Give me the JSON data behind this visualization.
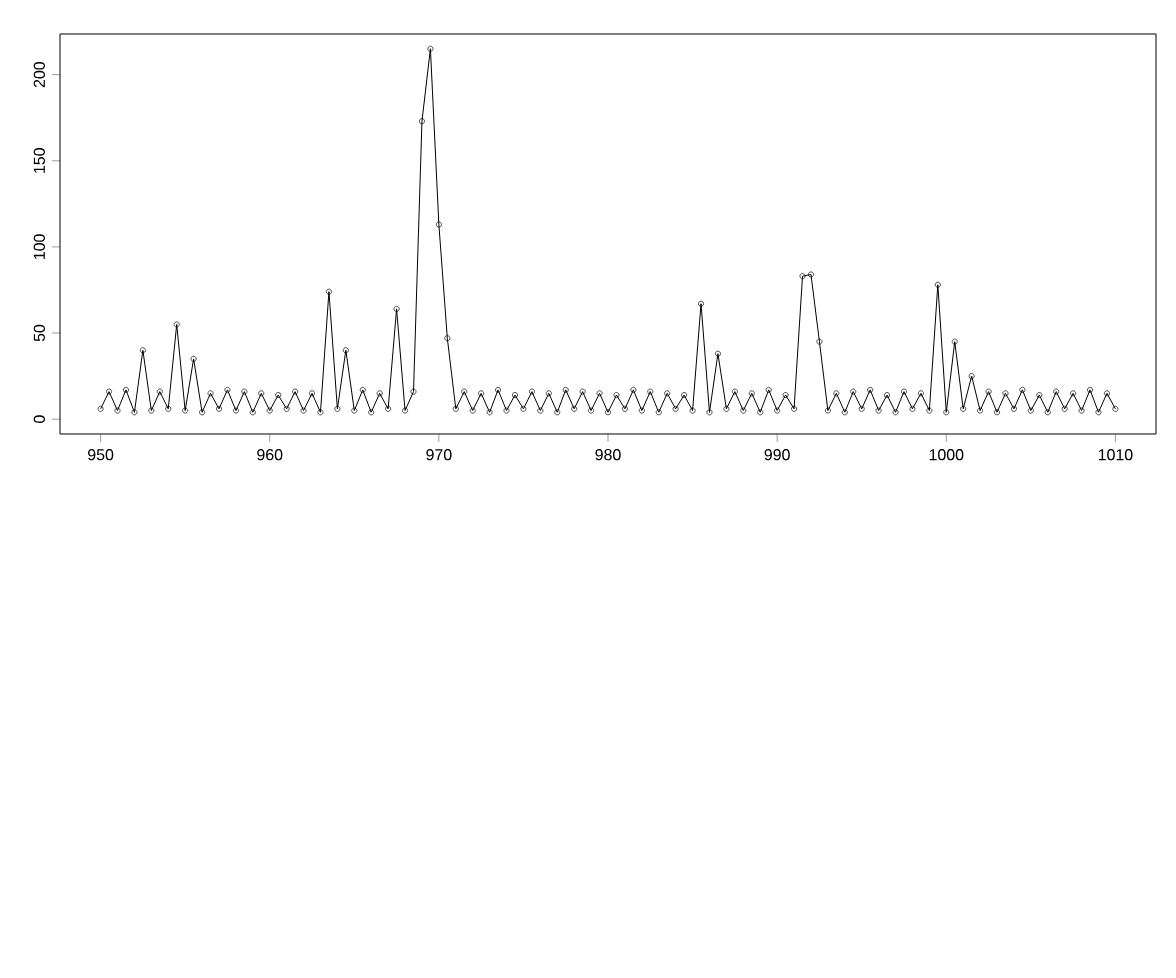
{
  "chart_data": {
    "type": "line",
    "marker": "circle",
    "line_style": "solid",
    "grid": false,
    "xlim": [
      947.6,
      1012.4
    ],
    "ylim": [
      -8.6,
      223.6
    ],
    "xticks": [
      950,
      960,
      970,
      980,
      990,
      1000,
      1010
    ],
    "yticks": [
      0,
      50,
      100,
      150,
      200
    ],
    "series": [
      {
        "color": "#000000",
        "x": [
          950,
          950.5,
          951,
          951.5,
          952,
          952.5,
          953,
          953.5,
          954,
          954.5,
          955,
          955.5,
          956,
          956.5,
          957,
          957.5,
          958,
          958.5,
          959,
          959.5,
          960,
          960.5,
          961,
          961.5,
          962,
          962.5,
          963,
          963.5,
          964,
          964.5,
          965,
          965.5,
          966,
          966.5,
          967,
          967.5,
          968,
          968.5,
          969,
          969.5,
          970,
          970.5,
          971,
          971.5,
          972,
          972.5,
          973,
          973.5,
          974,
          974.5,
          975,
          975.5,
          976,
          976.5,
          977,
          977.5,
          978,
          978.5,
          979,
          979.5,
          980,
          980.5,
          981,
          981.5,
          982,
          982.5,
          983,
          983.5,
          984,
          984.5,
          985,
          985.5,
          986,
          986.5,
          987,
          987.5,
          988,
          988.5,
          989,
          989.5,
          990,
          990.5,
          991,
          991.5,
          992,
          992.5,
          993,
          993.5,
          994,
          994.5,
          995,
          995.5,
          996,
          996.5,
          997,
          997.5,
          998,
          998.5,
          999,
          999.5,
          1000,
          1000.5,
          1001,
          1001.5,
          1002,
          1002.5,
          1003,
          1003.5,
          1004,
          1004.5,
          1005,
          1005.5,
          1006,
          1006.5,
          1007,
          1007.5,
          1008,
          1008.5,
          1009,
          1009.5,
          1010
        ],
        "values": [
          6,
          16,
          5,
          17,
          4,
          40,
          5,
          16,
          6,
          55,
          5,
          35,
          4,
          15,
          6,
          17,
          5,
          16,
          4,
          15,
          5,
          14,
          6,
          16,
          5,
          15,
          4,
          74,
          6,
          40,
          5,
          17,
          4,
          15,
          6,
          64,
          5,
          16,
          173,
          215,
          113,
          47,
          6,
          16,
          5,
          15,
          4,
          17,
          5,
          14,
          6,
          16,
          5,
          15,
          4,
          17,
          6,
          16,
          5,
          15,
          4,
          14,
          6,
          17,
          5,
          16,
          4,
          15,
          6,
          14,
          5,
          67,
          4,
          38,
          6,
          16,
          5,
          15,
          4,
          17,
          5,
          14,
          6,
          83,
          84,
          45,
          5,
          15,
          4,
          16,
          6,
          17,
          5,
          14,
          4,
          16,
          6,
          15,
          5,
          78,
          4,
          45,
          6,
          25,
          5,
          16,
          4,
          15,
          6,
          17,
          5,
          14,
          4,
          16,
          6,
          15,
          5,
          17,
          4,
          15,
          6
        ]
      }
    ]
  }
}
